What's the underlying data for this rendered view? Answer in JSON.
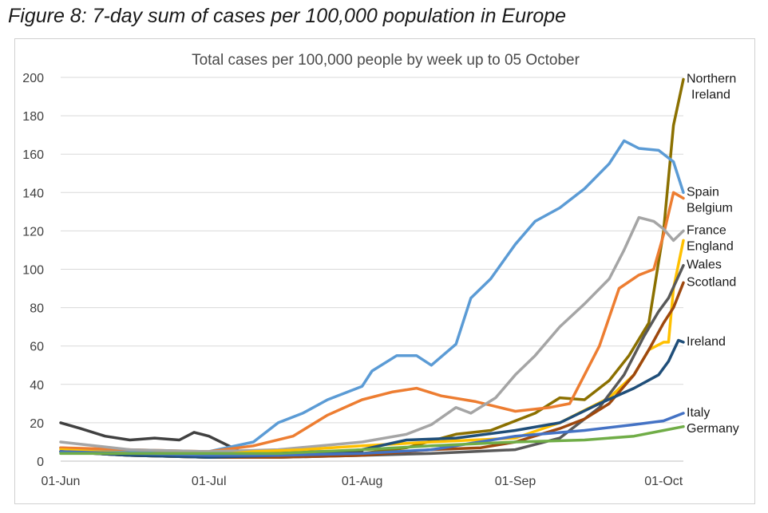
{
  "figure_title": "Figure 8: 7-day sum of cases per 100,000 population in Europe",
  "chart_data": {
    "type": "line",
    "title": "Total cases per 100,000 people by week up to 05 October",
    "xlabel": "",
    "ylabel": "",
    "ylim": [
      0,
      200
    ],
    "y_ticks": [
      0,
      20,
      40,
      60,
      80,
      100,
      120,
      140,
      160,
      180,
      200
    ],
    "x_range": [
      "2020-06-01",
      "2020-10-05"
    ],
    "x_ticks": [
      {
        "date": "2020-06-01",
        "label": "01-Jun"
      },
      {
        "date": "2020-07-01",
        "label": "01-Jul"
      },
      {
        "date": "2020-08-01",
        "label": "01-Aug"
      },
      {
        "date": "2020-09-01",
        "label": "01-Sep"
      },
      {
        "date": "2020-10-01",
        "label": "01-Oct"
      }
    ],
    "grid": "horizontal",
    "legend": "none (labels at line ends, right)",
    "series": [
      {
        "name": "Northern Ireland",
        "label_lines": [
          "Northern",
          "Ireland"
        ],
        "color": "#8b7000",
        "points": [
          [
            "2020-06-01",
            7
          ],
          [
            "2020-06-15",
            3
          ],
          [
            "2020-07-01",
            2
          ],
          [
            "2020-07-15",
            3
          ],
          [
            "2020-08-01",
            4
          ],
          [
            "2020-08-10",
            7
          ],
          [
            "2020-08-20",
            14
          ],
          [
            "2020-08-27",
            16
          ],
          [
            "2020-09-01",
            21
          ],
          [
            "2020-09-05",
            25
          ],
          [
            "2020-09-10",
            33
          ],
          [
            "2020-09-15",
            32
          ],
          [
            "2020-09-20",
            42
          ],
          [
            "2020-09-24",
            55
          ],
          [
            "2020-09-28",
            72
          ],
          [
            "2020-10-01",
            120
          ],
          [
            "2020-10-03",
            175
          ],
          [
            "2020-10-05",
            199
          ]
        ]
      },
      {
        "name": "Spain",
        "label_lines": [
          "Spain"
        ],
        "color": "#5b9bd5",
        "points": [
          [
            "2020-06-01",
            7
          ],
          [
            "2020-06-15",
            5
          ],
          [
            "2020-07-01",
            5
          ],
          [
            "2020-07-10",
            10
          ],
          [
            "2020-07-15",
            20
          ],
          [
            "2020-07-20",
            25
          ],
          [
            "2020-07-25",
            32
          ],
          [
            "2020-08-01",
            39
          ],
          [
            "2020-08-03",
            47
          ],
          [
            "2020-08-08",
            55
          ],
          [
            "2020-08-12",
            55
          ],
          [
            "2020-08-15",
            50
          ],
          [
            "2020-08-20",
            61
          ],
          [
            "2020-08-23",
            85
          ],
          [
            "2020-08-27",
            95
          ],
          [
            "2020-09-01",
            113
          ],
          [
            "2020-09-05",
            125
          ],
          [
            "2020-09-10",
            132
          ],
          [
            "2020-09-15",
            142
          ],
          [
            "2020-09-20",
            155
          ],
          [
            "2020-09-23",
            167
          ],
          [
            "2020-09-26",
            163
          ],
          [
            "2020-09-30",
            162
          ],
          [
            "2020-10-03",
            156
          ],
          [
            "2020-10-05",
            140
          ]
        ]
      },
      {
        "name": "Belgium",
        "label_lines": [
          "Belgium"
        ],
        "color": "#ed7d31",
        "points": [
          [
            "2020-06-01",
            7
          ],
          [
            "2020-06-15",
            6
          ],
          [
            "2020-07-01",
            5
          ],
          [
            "2020-07-10",
            8
          ],
          [
            "2020-07-18",
            13
          ],
          [
            "2020-07-25",
            24
          ],
          [
            "2020-08-01",
            32
          ],
          [
            "2020-08-07",
            36
          ],
          [
            "2020-08-12",
            38
          ],
          [
            "2020-08-17",
            34
          ],
          [
            "2020-08-24",
            31
          ],
          [
            "2020-09-01",
            26
          ],
          [
            "2020-09-08",
            28
          ],
          [
            "2020-09-12",
            30
          ],
          [
            "2020-09-15",
            45
          ],
          [
            "2020-09-18",
            60
          ],
          [
            "2020-09-22",
            90
          ],
          [
            "2020-09-26",
            97
          ],
          [
            "2020-09-29",
            100
          ],
          [
            "2020-10-01",
            118
          ],
          [
            "2020-10-03",
            140
          ],
          [
            "2020-10-05",
            137
          ]
        ]
      },
      {
        "name": "France",
        "label_lines": [
          "France"
        ],
        "color": "#a5a5a5",
        "points": [
          [
            "2020-06-01",
            10
          ],
          [
            "2020-06-15",
            6
          ],
          [
            "2020-07-01",
            5
          ],
          [
            "2020-07-15",
            6
          ],
          [
            "2020-08-01",
            10
          ],
          [
            "2020-08-10",
            14
          ],
          [
            "2020-08-15",
            19
          ],
          [
            "2020-08-20",
            28
          ],
          [
            "2020-08-23",
            25
          ],
          [
            "2020-08-28",
            33
          ],
          [
            "2020-09-01",
            45
          ],
          [
            "2020-09-05",
            55
          ],
          [
            "2020-09-10",
            70
          ],
          [
            "2020-09-15",
            82
          ],
          [
            "2020-09-20",
            95
          ],
          [
            "2020-09-23",
            110
          ],
          [
            "2020-09-26",
            127
          ],
          [
            "2020-09-29",
            125
          ],
          [
            "2020-10-01",
            121
          ],
          [
            "2020-10-03",
            115
          ],
          [
            "2020-10-05",
            120
          ]
        ]
      },
      {
        "name": "England",
        "label_lines": [
          "England"
        ],
        "color": "#ffc000",
        "points": [
          [
            "2020-06-01",
            6
          ],
          [
            "2020-06-15",
            4
          ],
          [
            "2020-07-01",
            3
          ],
          [
            "2020-07-10",
            5
          ],
          [
            "2020-07-20",
            6
          ],
          [
            "2020-08-01",
            8
          ],
          [
            "2020-08-15",
            10
          ],
          [
            "2020-09-01",
            12
          ],
          [
            "2020-09-10",
            20
          ],
          [
            "2020-09-20",
            33
          ],
          [
            "2020-09-25",
            45
          ],
          [
            "2020-09-28",
            58
          ],
          [
            "2020-10-01",
            62
          ],
          [
            "2020-10-02",
            62
          ],
          [
            "2020-10-03",
            90
          ],
          [
            "2020-10-05",
            115
          ]
        ]
      },
      {
        "name": "Wales",
        "label_lines": [
          "Wales"
        ],
        "color": "#595959",
        "points": [
          [
            "2020-06-01",
            5
          ],
          [
            "2020-06-15",
            3
          ],
          [
            "2020-07-01",
            2
          ],
          [
            "2020-07-15",
            2
          ],
          [
            "2020-08-01",
            3
          ],
          [
            "2020-08-15",
            4
          ],
          [
            "2020-09-01",
            6
          ],
          [
            "2020-09-10",
            12
          ],
          [
            "2020-09-18",
            28
          ],
          [
            "2020-09-23",
            45
          ],
          [
            "2020-09-27",
            65
          ],
          [
            "2020-09-30",
            78
          ],
          [
            "2020-10-02",
            85
          ],
          [
            "2020-10-05",
            102
          ]
        ]
      },
      {
        "name": "Scotland",
        "label_lines": [
          "Scotland"
        ],
        "color": "#9e480e",
        "points": [
          [
            "2020-06-01",
            5
          ],
          [
            "2020-06-15",
            3
          ],
          [
            "2020-07-01",
            2
          ],
          [
            "2020-07-15",
            2
          ],
          [
            "2020-08-01",
            3
          ],
          [
            "2020-08-15",
            6
          ],
          [
            "2020-08-25",
            7
          ],
          [
            "2020-09-01",
            10
          ],
          [
            "2020-09-10",
            17
          ],
          [
            "2020-09-15",
            22
          ],
          [
            "2020-09-20",
            30
          ],
          [
            "2020-09-25",
            45
          ],
          [
            "2020-09-28",
            58
          ],
          [
            "2020-10-01",
            72
          ],
          [
            "2020-10-03",
            80
          ],
          [
            "2020-10-05",
            93
          ]
        ]
      },
      {
        "name": "Ireland",
        "label_lines": [
          "Ireland"
        ],
        "color": "#1f4e79",
        "points": [
          [
            "2020-06-01",
            5
          ],
          [
            "2020-06-15",
            3
          ],
          [
            "2020-07-01",
            2
          ],
          [
            "2020-07-15",
            3
          ],
          [
            "2020-08-01",
            6
          ],
          [
            "2020-08-10",
            11
          ],
          [
            "2020-08-20",
            12
          ],
          [
            "2020-09-01",
            16
          ],
          [
            "2020-09-10",
            20
          ],
          [
            "2020-09-18",
            30
          ],
          [
            "2020-09-25",
            38
          ],
          [
            "2020-09-30",
            45
          ],
          [
            "2020-10-02",
            52
          ],
          [
            "2020-10-04",
            63
          ],
          [
            "2020-10-05",
            62
          ]
        ]
      },
      {
        "name": "Italy",
        "label_lines": [
          "Italy"
        ],
        "color": "#4472c4",
        "points": [
          [
            "2020-06-01",
            5
          ],
          [
            "2020-06-15",
            4
          ],
          [
            "2020-07-01",
            3
          ],
          [
            "2020-07-15",
            3
          ],
          [
            "2020-08-01",
            4
          ],
          [
            "2020-08-15",
            6
          ],
          [
            "2020-09-01",
            13
          ],
          [
            "2020-09-15",
            16
          ],
          [
            "2020-09-25",
            19
          ],
          [
            "2020-10-01",
            21
          ],
          [
            "2020-10-05",
            25
          ]
        ]
      },
      {
        "name": "Germany",
        "label_lines": [
          "Germany"
        ],
        "color": "#70ad47",
        "points": [
          [
            "2020-06-01",
            4
          ],
          [
            "2020-06-15",
            4
          ],
          [
            "2020-07-01",
            4
          ],
          [
            "2020-07-15",
            4
          ],
          [
            "2020-08-01",
            6
          ],
          [
            "2020-08-15",
            8
          ],
          [
            "2020-09-01",
            10
          ],
          [
            "2020-09-15",
            11
          ],
          [
            "2020-09-25",
            13
          ],
          [
            "2020-10-01",
            16
          ],
          [
            "2020-10-05",
            18
          ]
        ]
      },
      {
        "name": "",
        "label_lines": [],
        "color": "#404040",
        "points": [
          [
            "2020-06-01",
            20
          ],
          [
            "2020-06-05",
            17
          ],
          [
            "2020-06-10",
            13
          ],
          [
            "2020-06-15",
            11
          ],
          [
            "2020-06-20",
            12
          ],
          [
            "2020-06-25",
            11
          ],
          [
            "2020-06-28",
            15
          ],
          [
            "2020-07-01",
            13
          ],
          [
            "2020-07-05",
            8
          ],
          [
            "2020-07-08",
            4
          ],
          [
            "2020-07-15",
            5
          ],
          [
            "2020-07-25",
            5
          ],
          [
            "2020-08-01",
            5
          ]
        ]
      }
    ]
  }
}
